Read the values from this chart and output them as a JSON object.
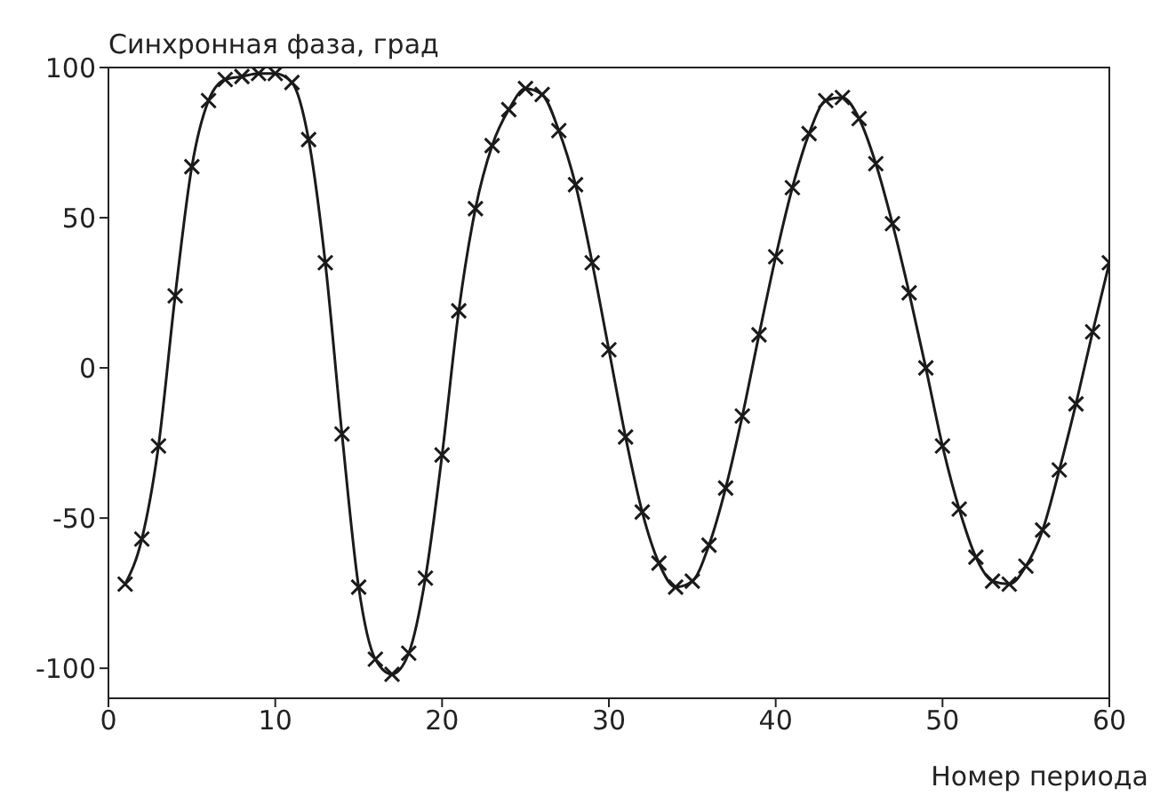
{
  "chart_data": {
    "type": "line",
    "ylabel": "Синхронная фаза, град",
    "xlabel": "Номер периода",
    "x": [
      1,
      2,
      3,
      4,
      5,
      6,
      7,
      8,
      9,
      10,
      11,
      12,
      13,
      14,
      15,
      16,
      17,
      18,
      19,
      20,
      21,
      22,
      23,
      24,
      25,
      26,
      27,
      28,
      29,
      30,
      31,
      32,
      33,
      34,
      35,
      36,
      37,
      38,
      39,
      40,
      41,
      42,
      43,
      44,
      45,
      46,
      47,
      48,
      49,
      50,
      51,
      52,
      53,
      54,
      55,
      56,
      57,
      58,
      59,
      60
    ],
    "series": [
      {
        "color": "#1a1a1a",
        "values": [
          -72,
          -57,
          -26,
          24,
          67,
          89,
          96,
          97,
          98,
          98,
          95,
          76,
          35,
          -22,
          -73,
          -97,
          -102,
          -95,
          -70,
          -29,
          19,
          53,
          74,
          86,
          93,
          91,
          79,
          61,
          35,
          6,
          -23,
          -48,
          -65,
          -73,
          -71,
          -59,
          -40,
          -16,
          11,
          37,
          60,
          78,
          89,
          90,
          83,
          68,
          48,
          25,
          0,
          -26,
          -47,
          -63,
          -71,
          -72,
          -66,
          -54,
          -34,
          -12,
          12,
          35
        ]
      }
    ],
    "xlim": [
      0,
      60
    ],
    "xticks": [
      0,
      10,
      20,
      30,
      40,
      50,
      60
    ],
    "ylim": [
      -110,
      100
    ],
    "yticks": [
      -100,
      -50,
      0,
      50,
      100
    ],
    "grid": false,
    "legend": false,
    "marker": "cross",
    "line_style": "solid"
  }
}
